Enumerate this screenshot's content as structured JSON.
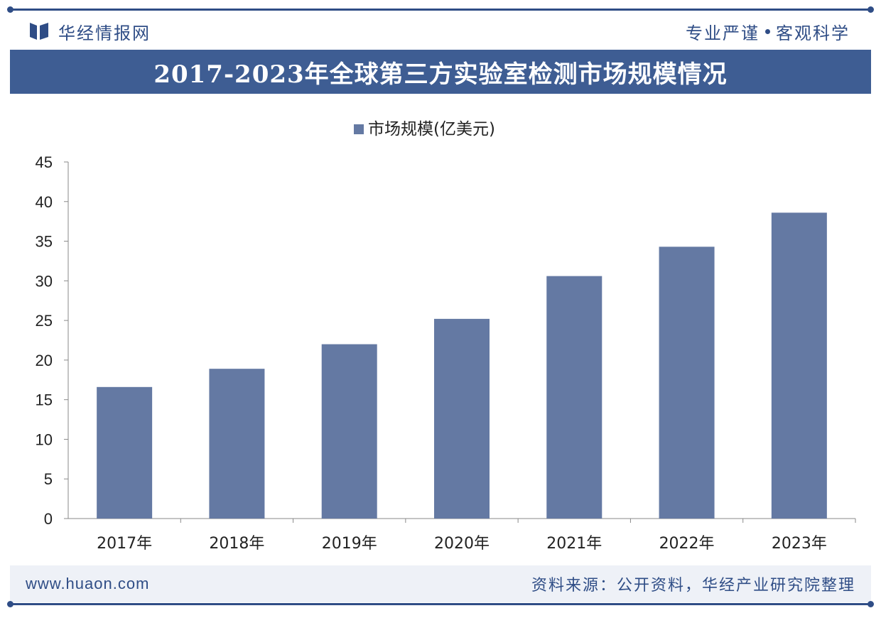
{
  "header": {
    "brand_name": "华经情报网",
    "slogan_left": "专业严谨",
    "slogan_right": "客观科学",
    "logo_icon": "huajing-logo-icon"
  },
  "title": "2017-2023年全球第三方实验室检测市场规模情况",
  "colors": {
    "brand": "#2f4d86",
    "title_bar": "#3e5d93",
    "bar": "#6479a3",
    "axis": "#8a8a8a",
    "text": "#222222"
  },
  "chart_data": {
    "type": "bar",
    "categories": [
      "2017年",
      "2018年",
      "2019年",
      "2020年",
      "2021年",
      "2022年",
      "2023年"
    ],
    "series": [
      {
        "name": "市场规模(亿美元)",
        "values": [
          16.6,
          18.9,
          22.0,
          25.2,
          30.6,
          34.3,
          38.6
        ]
      }
    ],
    "ylim": [
      0,
      45
    ],
    "yticks": [
      0,
      5,
      10,
      15,
      20,
      25,
      30,
      35,
      40,
      45
    ],
    "xlabel": "",
    "ylabel": "",
    "legend_position": "top-center",
    "grid": false
  },
  "footer": {
    "url": "www.huaon.com",
    "source": "资料来源：公开资料，华经产业研究院整理"
  }
}
